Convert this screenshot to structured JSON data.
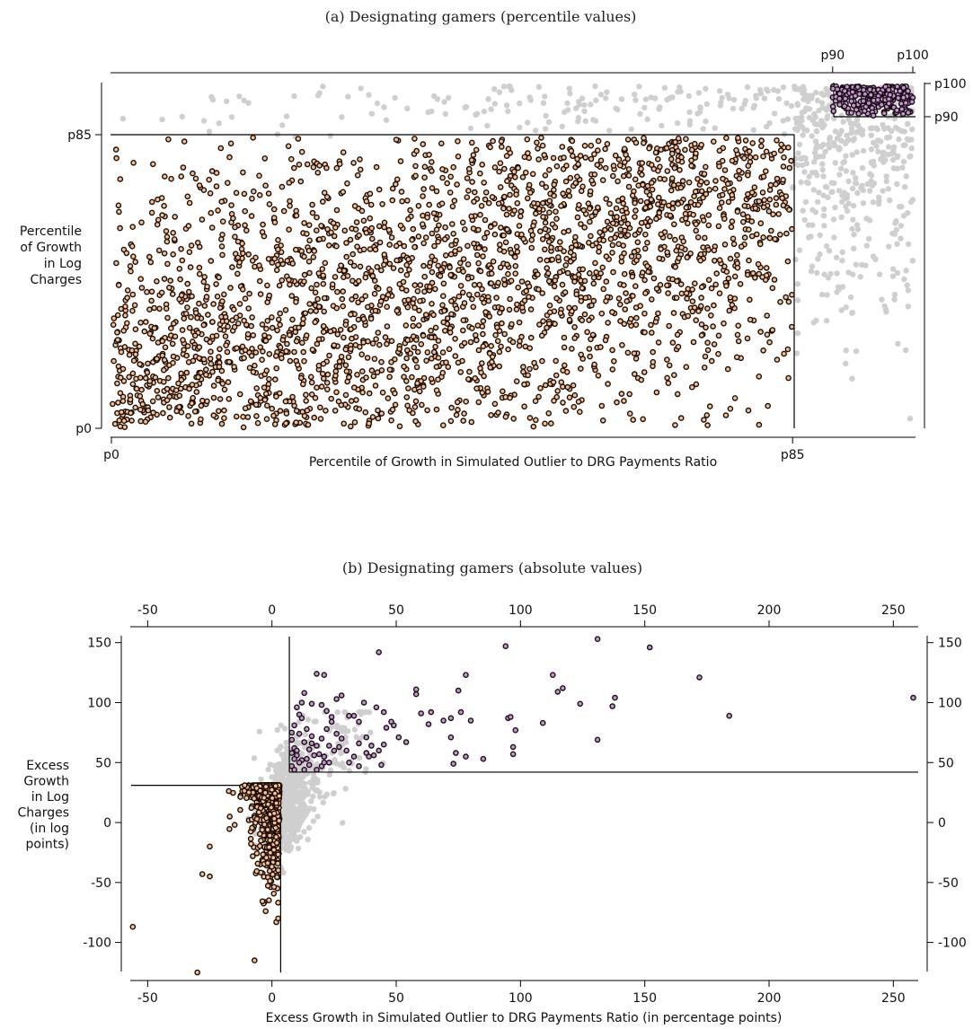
{
  "colors": {
    "grey": "#cfcfcf",
    "orange": "#f6c090",
    "purple": "#c396cf",
    "outline": "#1b0d06"
  },
  "chart_data": [
    {
      "type": "scatter",
      "title": "(a) Designating gamers (percentile values)",
      "xlabel": "Percentile of Growth in Simulated Outlier to DRG Payments Ratio",
      "ylabel": [
        "Percentile",
        "of Growth",
        "in Log",
        "Charges"
      ],
      "xlim": [
        0,
        100
      ],
      "ylim": [
        0,
        100
      ],
      "xticks_bottom": [
        {
          "value": 0,
          "label": "p0"
        },
        {
          "value": 85,
          "label": "p85"
        }
      ],
      "xticks_top": [
        {
          "value": 90,
          "label": "p90"
        },
        {
          "value": 100,
          "label": "p100"
        }
      ],
      "yticks_left": [
        {
          "value": 0,
          "label": "p0"
        },
        {
          "value": 85,
          "label": "p85"
        }
      ],
      "yticks_right": [
        {
          "value": 90,
          "label": "p90"
        },
        {
          "value": 100,
          "label": "p100"
        }
      ],
      "thresholds": {
        "control_x": 85,
        "control_y": 85,
        "gamer_x": 90,
        "gamer_y": 90
      },
      "series": [
        {
          "group": "all",
          "color": "grey",
          "approx_count": 1000
        },
        {
          "group": "control",
          "color": "orange",
          "x_range": [
            0,
            85
          ],
          "y_range": [
            0,
            85
          ],
          "approx_count": 2600
        },
        {
          "group": "gamer",
          "color": "purple",
          "x_range": [
            90,
            100
          ],
          "y_range": [
            90,
            100
          ],
          "approx_count": 250
        }
      ]
    },
    {
      "type": "scatter",
      "title": "(b) Designating gamers (absolute values)",
      "xlabel": "Excess Growth in Simulated Outlier to DRG Payments Ratio (in percentage points)",
      "ylabel": [
        "Excess",
        "Growth",
        "in Log",
        "Charges",
        "(in log",
        "points)"
      ],
      "xticks": [
        {
          "value": -50,
          "label": "-50"
        },
        {
          "value": 0,
          "label": "0"
        },
        {
          "value": 50,
          "label": "50"
        },
        {
          "value": 100,
          "label": "100"
        },
        {
          "value": 150,
          "label": "150"
        },
        {
          "value": 200,
          "label": "200"
        },
        {
          "value": 250,
          "label": "250"
        }
      ],
      "yticks": [
        {
          "value": -100,
          "label": "-100"
        },
        {
          "value": -50,
          "label": "-50"
        },
        {
          "value": 0,
          "label": "0"
        },
        {
          "value": 50,
          "label": "50"
        },
        {
          "value": 100,
          "label": "100"
        },
        {
          "value": 150,
          "label": "150"
        }
      ],
      "xlim": [
        -57,
        260
      ],
      "ylim": [
        -125,
        155
      ],
      "thresholds": {
        "control_x_max": 3.5,
        "control_y_max": 31,
        "gamer_x_min": 7,
        "gamer_y_min": 42
      },
      "series": [
        {
          "group": "all",
          "color": "grey",
          "approx_count": 700
        },
        {
          "group": "control",
          "color": "orange",
          "approx_count": 1300
        },
        {
          "group": "gamer",
          "color": "purple",
          "points": [
            [
              43,
              142
            ],
            [
              78,
              123
            ],
            [
              94,
              147
            ],
            [
              113,
              123
            ],
            [
              131,
              153
            ],
            [
              152,
              146
            ],
            [
              172,
              121
            ],
            [
              258,
              104
            ],
            [
              58,
              111
            ],
            [
              58,
              107
            ],
            [
              75,
              110
            ],
            [
              95,
              87
            ],
            [
              96,
              88
            ],
            [
              109,
              83
            ],
            [
              115,
              109
            ],
            [
              117,
              112
            ],
            [
              124,
              99
            ],
            [
              131,
              69
            ],
            [
              137,
              97
            ],
            [
              138,
              104
            ],
            [
              184,
              89
            ],
            [
              64,
              92
            ],
            [
              69,
              85
            ],
            [
              72,
              87
            ],
            [
              76,
              92
            ],
            [
              80,
              85
            ],
            [
              72,
              71
            ],
            [
              74,
              58
            ],
            [
              78,
              55
            ],
            [
              85,
              53
            ],
            [
              97,
              63
            ],
            [
              97,
              57
            ],
            [
              73,
              49
            ],
            [
              98,
              77
            ],
            [
              60,
              91
            ],
            [
              63,
              82
            ],
            [
              46,
              79
            ],
            [
              49,
              81
            ],
            [
              51,
              71
            ],
            [
              54,
              67
            ],
            [
              45,
              65
            ],
            [
              40,
              64
            ],
            [
              38,
              71
            ],
            [
              35,
              66
            ],
            [
              38,
              58
            ],
            [
              39,
              55
            ],
            [
              41,
              56
            ],
            [
              43,
              60
            ],
            [
              44,
              48
            ],
            [
              33,
              55
            ],
            [
              31,
              50
            ],
            [
              35,
              47
            ],
            [
              30,
              60
            ],
            [
              21,
              123
            ],
            [
              26,
              103
            ],
            [
              28,
              106
            ],
            [
              31,
              89
            ],
            [
              33,
              89
            ],
            [
              35,
              84
            ],
            [
              37,
              100
            ],
            [
              42,
              96
            ],
            [
              45,
              92
            ],
            [
              48,
              84
            ],
            [
              13,
              108
            ],
            [
              16,
              99
            ],
            [
              18,
              124
            ],
            [
              20,
              98
            ],
            [
              22,
              93
            ],
            [
              24,
              84
            ],
            [
              26,
              74
            ],
            [
              28,
              70
            ],
            [
              27,
              63
            ],
            [
              25,
              60
            ],
            [
              23,
              64
            ],
            [
              19,
              57
            ],
            [
              18,
              64
            ],
            [
              16,
              72
            ],
            [
              14,
              78
            ],
            [
              12,
              87
            ],
            [
              10,
              96
            ],
            [
              9,
              81
            ],
            [
              11,
              74
            ],
            [
              13,
              67
            ],
            [
              15,
              61
            ],
            [
              17,
              56
            ],
            [
              21,
              55
            ],
            [
              23,
              50
            ],
            [
              20,
              47
            ],
            [
              15,
              48
            ],
            [
              12,
              52
            ],
            [
              10,
              56
            ],
            [
              9,
              62
            ],
            [
              8,
              69
            ],
            [
              8,
              75
            ],
            [
              10,
              60
            ],
            [
              11,
              50
            ],
            [
              8,
              47
            ],
            [
              9,
              44
            ],
            [
              13,
              44
            ],
            [
              18,
              44
            ],
            [
              21,
              50
            ],
            [
              14,
              53
            ],
            [
              16,
              66
            ],
            [
              20,
              70
            ],
            [
              22,
              78
            ],
            [
              24,
              88
            ],
            [
              11,
              90
            ],
            [
              12,
              100
            ],
            [
              9,
              53
            ],
            [
              8,
              58
            ]
          ]
        }
      ]
    }
  ]
}
